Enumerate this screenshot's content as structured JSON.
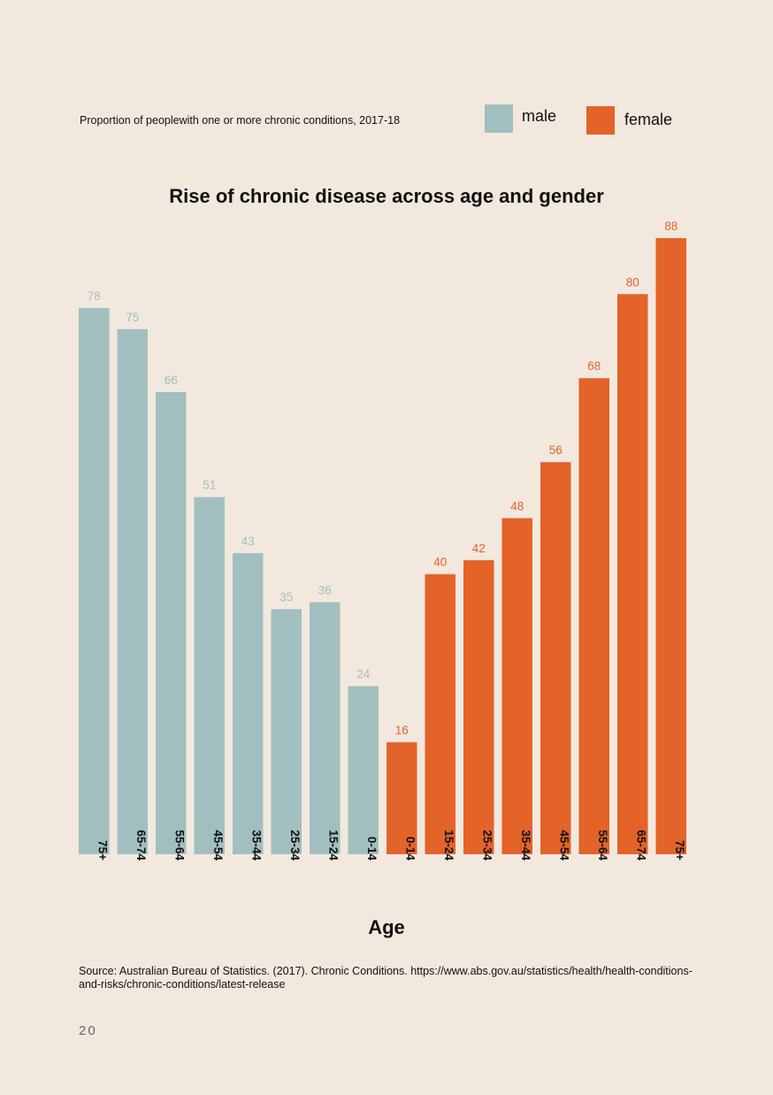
{
  "header": {
    "subtitle": "Proportion of peoplewith one or more chronic conditions, 2017-18"
  },
  "legend": {
    "male": {
      "label": "male",
      "color": "#a1bfbf"
    },
    "female": {
      "label": "female",
      "color": "#e36329"
    }
  },
  "chart_data": {
    "type": "bar",
    "title": "Rise of chronic disease across age and gender",
    "xlabel": "Age",
    "ylabel": "",
    "ylim": [
      0,
      88
    ],
    "categories": [
      "75+",
      "65-74",
      "55-64",
      "45-54",
      "35-44",
      "25-34",
      "15-24",
      "0-14",
      "0-14",
      "15-24",
      "25-34",
      "35-44",
      "45-54",
      "55-64",
      "65-74",
      "75+"
    ],
    "series": [
      {
        "name": "male",
        "color": "#a1bfbf",
        "values": [
          78,
          75,
          66,
          51,
          43,
          35,
          36,
          24,
          null,
          null,
          null,
          null,
          null,
          null,
          null,
          null
        ]
      },
      {
        "name": "female",
        "color": "#e36329",
        "values": [
          null,
          null,
          null,
          null,
          null,
          null,
          null,
          null,
          16,
          40,
          42,
          48,
          56,
          68,
          80,
          88
        ]
      }
    ],
    "grid": false,
    "legend_position": "top-right"
  },
  "footer": {
    "source": "Source: Australian Bureau of Statistics. (2017). Chronic Conditions. https://www.abs.gov.au/statistics/health/health-conditions-and-risks/chronic-conditions/latest-release",
    "page_number": "20"
  }
}
